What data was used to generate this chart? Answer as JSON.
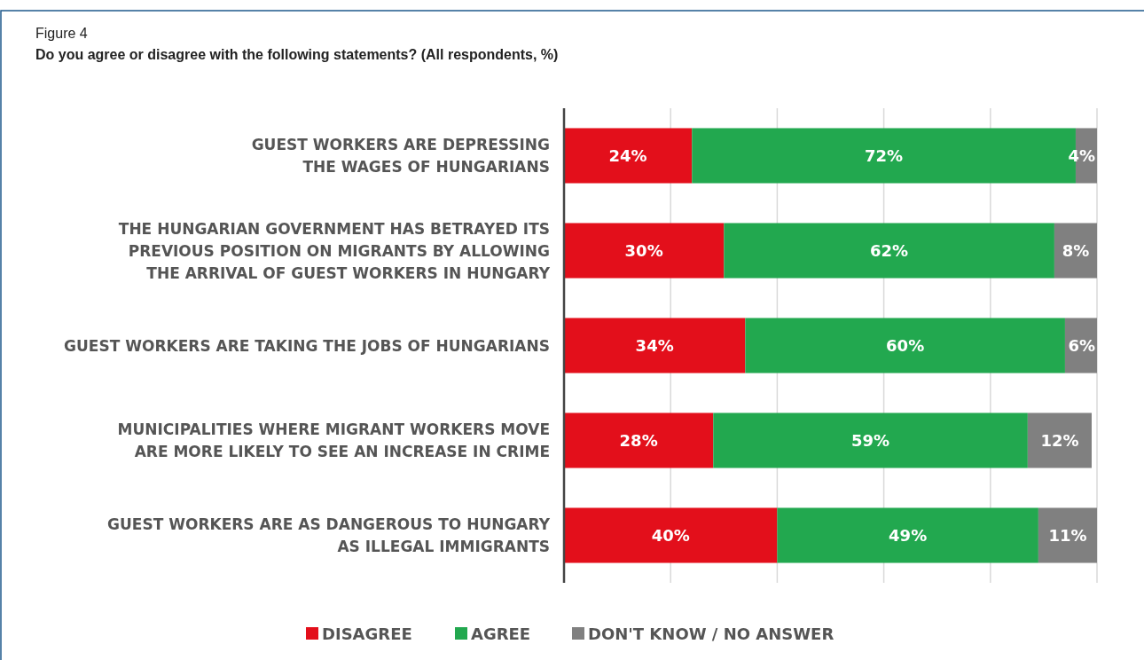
{
  "chart_data": {
    "type": "bar",
    "orientation": "horizontal",
    "stacked": true,
    "title": "Figure 4",
    "subtitle": "Do you agree or disagree with the following statements? (All respondents, %)",
    "categories": [
      "GUEST WORKERS ARE DEPRESSING\nTHE WAGES OF HUNGARIANS",
      "THE HUNGARIAN GOVERNMENT HAS BETRAYED ITS\nPREVIOUS POSITION ON MIGRANTS BY ALLOWING\nTHE ARRIVAL OF GUEST WORKERS IN HUNGARY",
      "GUEST WORKERS ARE TAKING THE JOBS OF HUNGARIANS",
      "MUNICIPALITIES WHERE MIGRANT WORKERS MOVE\nARE MORE LIKELY TO SEE AN INCREASE IN CRIME",
      "GUEST WORKERS ARE AS DANGEROUS TO HUNGARY\nAS ILLEGAL IMMIGRANTS"
    ],
    "series": [
      {
        "name": "DISAGREE",
        "color": "#e30f1b",
        "values": [
          24,
          30,
          34,
          28,
          40
        ],
        "value_labels": [
          "24%",
          "30%",
          "34%",
          "28%",
          "40%"
        ]
      },
      {
        "name": "AGREE",
        "color": "#22a84f",
        "values": [
          72,
          62,
          60,
          59,
          49
        ],
        "value_labels": [
          "72%",
          "62%",
          "60%",
          "59%",
          "49%"
        ]
      },
      {
        "name": "DON'T KNOW / NO ANSWER",
        "color": "#808080",
        "values": [
          4,
          8,
          6,
          12,
          11
        ],
        "value_labels": [
          "4%",
          "8%",
          "6%",
          "12%",
          "11%"
        ]
      }
    ],
    "xlim": [
      0,
      100
    ],
    "xticks": [
      {
        "value": 0,
        "label": null
      },
      {
        "value": 20,
        "label": null
      },
      {
        "value": 40,
        "label": null
      },
      {
        "value": 60,
        "label": null
      },
      {
        "value": 80,
        "label": null
      },
      {
        "value": 100,
        "label": null
      }
    ],
    "tick_labels": "y",
    "grid": "x",
    "legend": "bottom"
  }
}
